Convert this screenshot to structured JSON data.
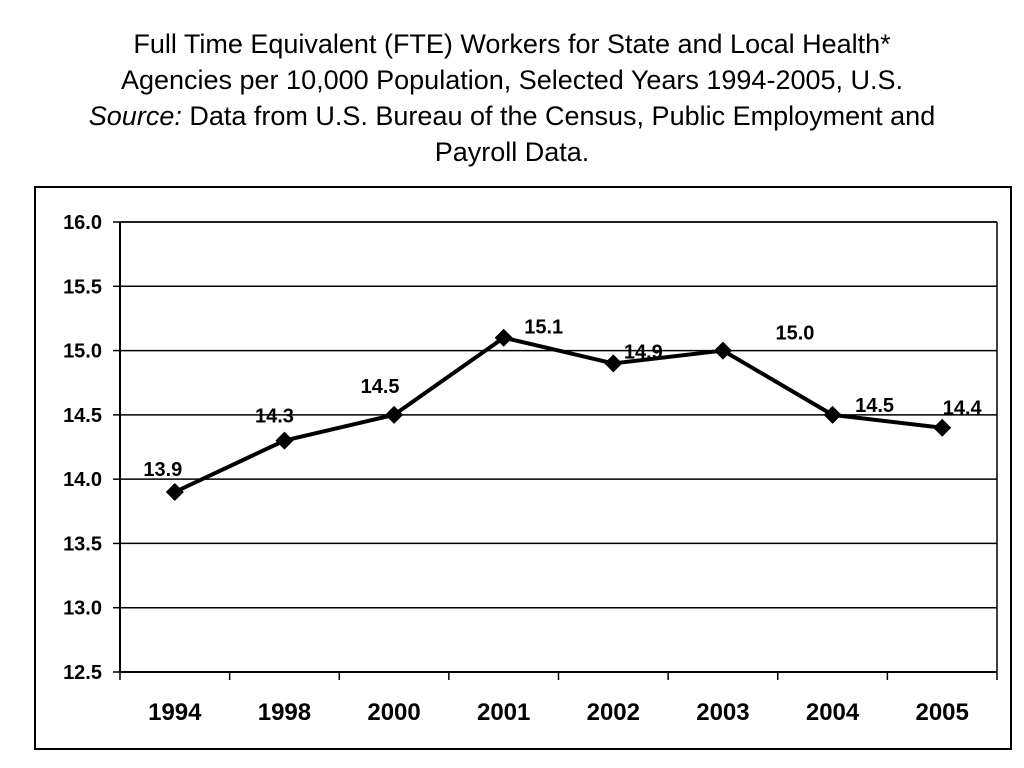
{
  "title": {
    "line1": "Full Time Equivalent (FTE) Workers for State and Local Health*",
    "line2": "Agencies per 10,000 Population, Selected Years 1994-2005, U.S.",
    "source_label": "Source:",
    "source_text": " Data from U.S. Bureau of the Census, Public Employment and",
    "line4": "Payroll Data."
  },
  "chart_data": {
    "type": "line",
    "categories": [
      "1994",
      "1998",
      "2000",
      "2001",
      "2002",
      "2003",
      "2004",
      "2005"
    ],
    "values": [
      13.9,
      14.3,
      14.5,
      15.1,
      14.9,
      15.0,
      14.5,
      14.4
    ],
    "data_labels": [
      "13.9",
      "14.3",
      "14.5",
      "15.1",
      "14.9",
      "15.0",
      "14.5",
      "14.4"
    ],
    "ylim": [
      12.5,
      16.0
    ],
    "yticks": [
      "12.5",
      "13.0",
      "13.5",
      "14.0",
      "14.5",
      "15.0",
      "15.5",
      "16.0"
    ],
    "xlabel": "",
    "ylabel": "",
    "grid": true,
    "marker": "diamond",
    "colors": {
      "line": "#000000",
      "grid": "#000000",
      "background": "#ffffff"
    }
  }
}
